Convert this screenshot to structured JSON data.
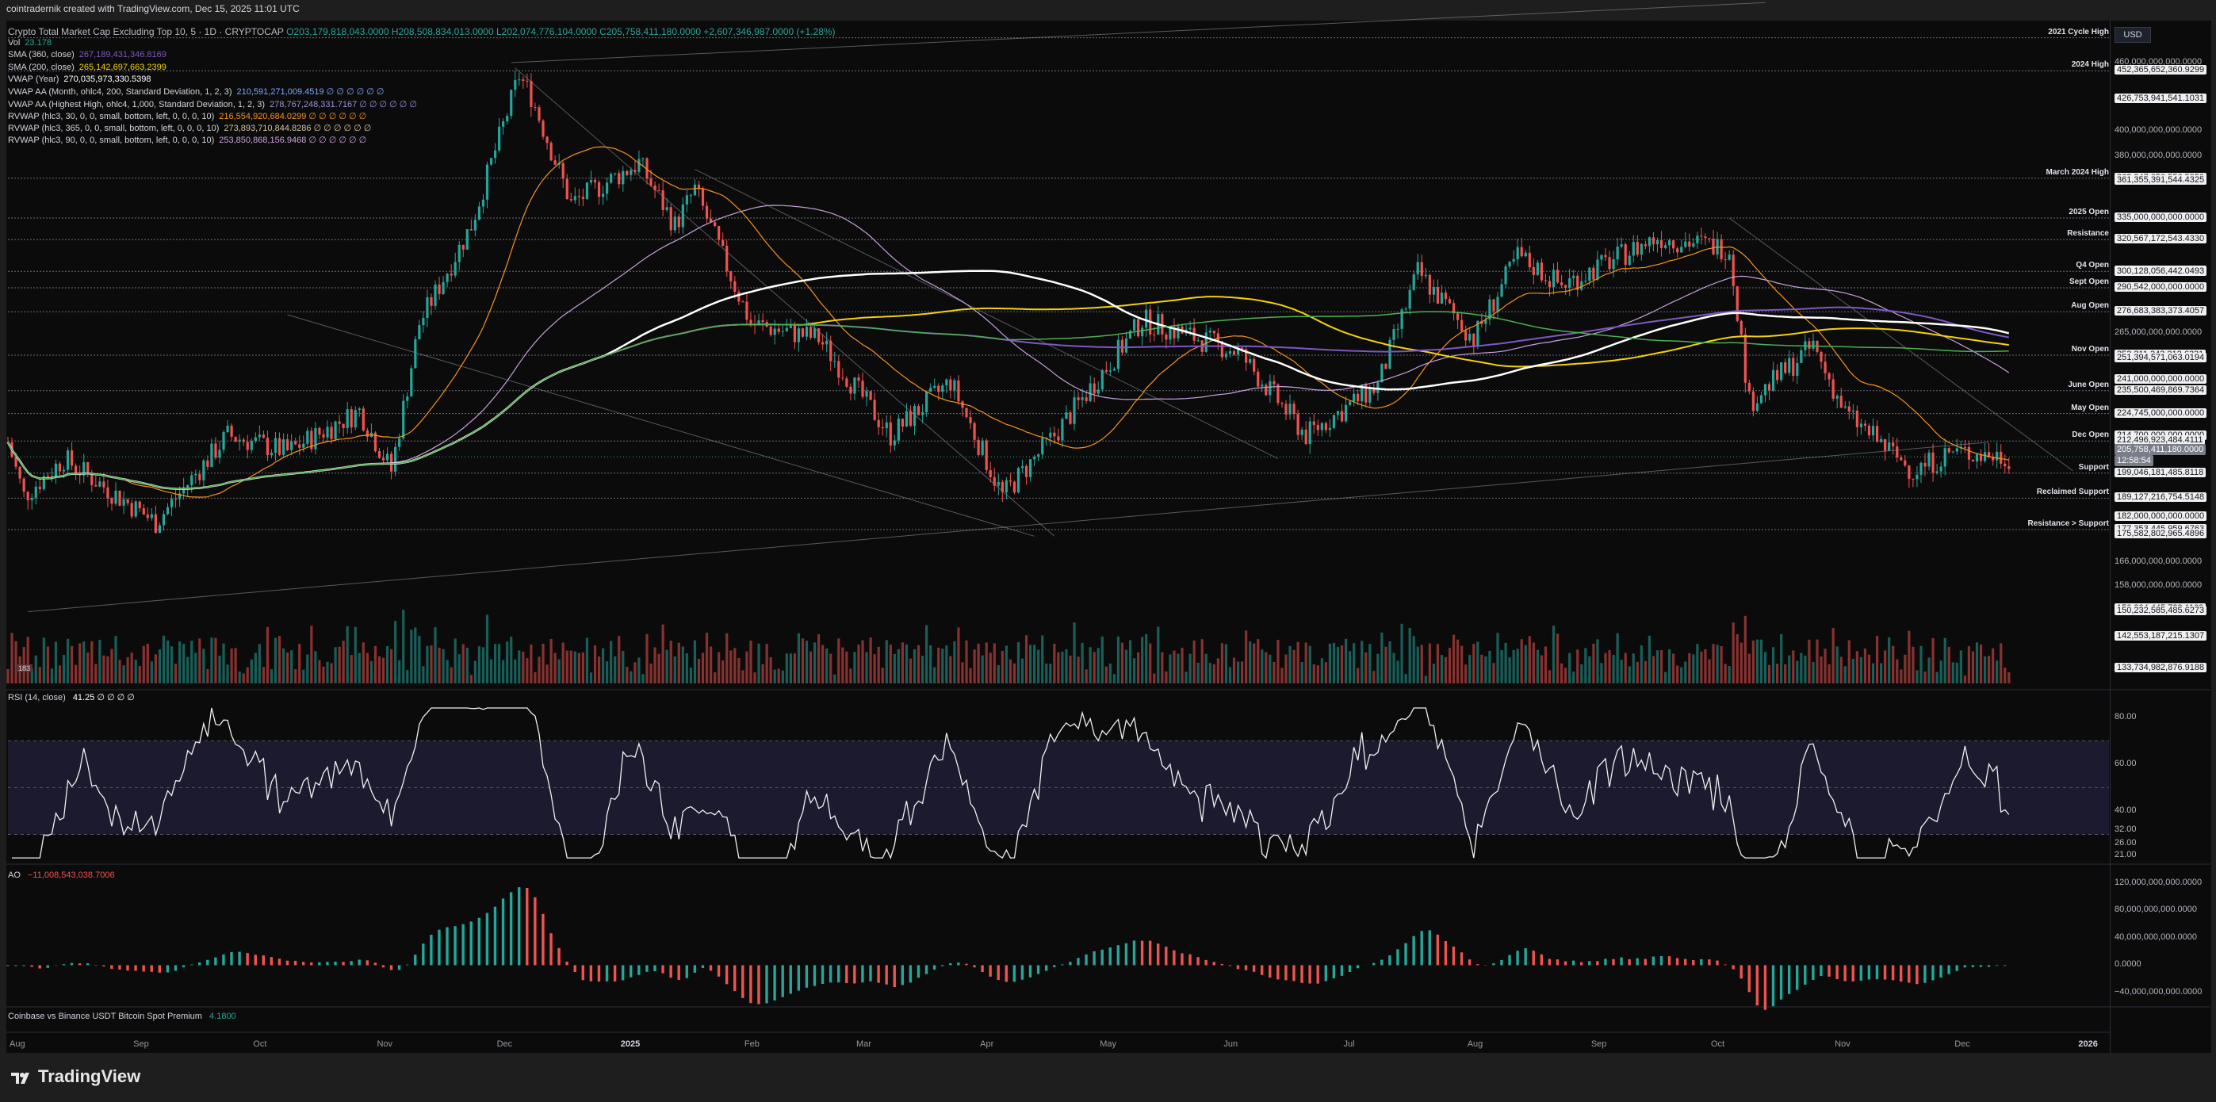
{
  "top_bar": "cointradernik created with TradingView.com, Dec 15, 2025 11:01 UTC",
  "header": {
    "symbol": "Crypto Total Market Cap Excluding Top 10, 5 · 1D · CRYPTOCAP",
    "open": "O203,179,818,043.0000",
    "high": "H208,508,834,013.0000",
    "low": "L202,074,776,104.0000",
    "close": "C205,758,411,180.0000",
    "change": "+2,607,346,987.0000 (+1.28%)"
  },
  "indicators": [
    {
      "label": "Vol",
      "value": "23.178",
      "color": "#26a69a"
    },
    {
      "label": "SMA (360, close)",
      "value": "267,189,431,346.8169",
      "color": "#7e57c2"
    },
    {
      "label": "SMA (200, close)",
      "value": "265,142,697,663.2399",
      "color": "#f5d10b"
    },
    {
      "label": "VWAP (Year)",
      "value": "270,035,973,330.5398",
      "color": "#ffffff"
    },
    {
      "label": "VWAP AA (Month, ohlc4, 200, Standard Deviation, 1, 2, 3)",
      "value": "210,591,271,009.4519  ∅ ∅ ∅ ∅ ∅ ∅",
      "color": "#7ea8f8"
    },
    {
      "label": "VWAP AA (Highest High, ohlc4, 1,000, Standard Deviation, 1, 2, 3)",
      "value": "278,767,248,331.7167  ∅ ∅ ∅ ∅ ∅ ∅",
      "color": "#9c8fd9"
    },
    {
      "label": "RVWAP (hlc3, 30, 0, 0, small, bottom, left, 0, 0, 0, 10)",
      "value": "216,554,920,684.0299  ∅ ∅ ∅ ∅ ∅ ∅",
      "color": "#f7931a"
    },
    {
      "label": "RVWAP (hlc3, 365, 0, 0, small, bottom, left, 0, 0, 0, 10)",
      "value": "273,893,710,844.8286  ∅ ∅ ∅ ∅ ∅ ∅",
      "color": "#d7c4a1"
    },
    {
      "label": "RVWAP (hlc3, 90, 0, 0, small, bottom, left, 0, 0, 0, 10)",
      "value": "253,850,868,156.9468  ∅ ∅ ∅ ∅ ∅ ∅",
      "color": "#c9a0dc"
    }
  ],
  "currency": "USD",
  "level_labels": [
    {
      "name": "2021 Cycle High",
      "value": 484
    },
    {
      "name": "2024 High",
      "value": 452.37
    },
    {
      "name": "March 2024 High",
      "value": 363.35
    },
    {
      "name": "2025 Open",
      "value": 335
    },
    {
      "name": "Resistance",
      "value": 320.57
    },
    {
      "name": "Q4 Open",
      "value": 300.44
    },
    {
      "name": "Sept Open",
      "value": 290.54
    },
    {
      "name": "Aug Open",
      "value": 276.68
    },
    {
      "name": "Nov Open",
      "value": 253.21
    },
    {
      "name": "June Open",
      "value": 235.5
    },
    {
      "name": "May Open",
      "value": 224.75
    },
    {
      "name": "Dec Open",
      "value": 212.5
    },
    {
      "name": "Support",
      "value": 199.05
    },
    {
      "name": "Reclaimed Support",
      "value": 189.13
    },
    {
      "name": "Resistance > Support",
      "value": 177.35
    }
  ],
  "price_ticks": [
    {
      "label": "460,000,000,000.0000",
      "value": 460,
      "boxed": false
    },
    {
      "label": "452,365,652,360.9299",
      "value": 452.37,
      "boxed": true
    },
    {
      "label": "426,753,941,541.1031",
      "value": 426.75,
      "boxed": true
    },
    {
      "label": "400,000,000,000.0000",
      "value": 400,
      "boxed": false
    },
    {
      "label": "380,000,000,000.0000",
      "value": 380,
      "boxed": false
    },
    {
      "label": "363,347,050,556.5959",
      "value": 363.35,
      "boxed": true
    },
    {
      "label": "361,355,391,544.4325",
      "value": 361.36,
      "boxed": true
    },
    {
      "label": "335,000,000,000.0000",
      "value": 335,
      "boxed": true
    },
    {
      "label": "320,567,172,543.4330",
      "value": 320.57,
      "boxed": true
    },
    {
      "label": "300,437,389,781.1864",
      "value": 300.44,
      "boxed": true
    },
    {
      "label": "300,128,056,442.0493",
      "value": 300.13,
      "boxed": true
    },
    {
      "label": "290,542,000,000.0000",
      "value": 290.54,
      "boxed": true
    },
    {
      "label": "276,683,383,373.4057",
      "value": 276.68,
      "boxed": true
    },
    {
      "label": "265,000,000,000.0000",
      "value": 265,
      "boxed": false
    },
    {
      "label": "253,211,343,212.6331",
      "value": 253.21,
      "boxed": true
    },
    {
      "label": "251,394,571,063.0194",
      "value": 251.39,
      "boxed": true
    },
    {
      "label": "241,000,000,000.0000",
      "value": 241,
      "boxed": true
    },
    {
      "label": "235,500,469,869.7364",
      "value": 235.5,
      "boxed": true
    },
    {
      "label": "224,745,000,000.0000",
      "value": 224.75,
      "boxed": true
    },
    {
      "label": "214,700,000,000.0000",
      "value": 214.7,
      "boxed": true
    },
    {
      "label": "212,496,923,484.4111",
      "value": 212.5,
      "boxed": true
    },
    {
      "label": "199,046,181,485.8118",
      "value": 199.05,
      "boxed": true
    },
    {
      "label": "189,127,216,754.5148",
      "value": 189.13,
      "boxed": true
    },
    {
      "label": "182,000,000,000.0000",
      "value": 182,
      "boxed": true
    },
    {
      "label": "177,353,445,959.6763",
      "value": 177.35,
      "boxed": true
    },
    {
      "label": "175,582,802,965.4896",
      "value": 175.58,
      "boxed": true
    },
    {
      "label": "166,000,000,000.0000",
      "value": 166,
      "boxed": false
    },
    {
      "label": "158,000,000,000.0000",
      "value": 158,
      "boxed": false
    },
    {
      "label": "150,804,445,728.1169",
      "value": 150.8,
      "boxed": true
    },
    {
      "label": "150,232,585,485.6273",
      "value": 150.23,
      "boxed": true
    },
    {
      "label": "142,553,187,215.1307",
      "value": 142.55,
      "boxed": true
    },
    {
      "label": "133,734,982,876.9188",
      "value": 133.73,
      "boxed": true
    }
  ],
  "current_price": {
    "label": "205,758,411,180.0000",
    "countdown": "12:58:54",
    "value": 205.76
  },
  "rsi": {
    "label": "RSI (14, close)",
    "value": "41.25  ∅ ∅ ∅ ∅",
    "ticks": [
      "80.00",
      "60.00",
      "40.00",
      "32.00",
      "26.00",
      "21.00"
    ],
    "tick_values": [
      80,
      60,
      40,
      32,
      26,
      21
    ]
  },
  "ao": {
    "label": "AO",
    "value": "−11,008,543,038.7006",
    "ticks": [
      "120,000,000,000.0000",
      "80,000,000,000.0000",
      "40,000,000,000.0000",
      "0.0000",
      "−40,000,000,000.0000"
    ],
    "tick_values": [
      120,
      80,
      40,
      0,
      -40
    ]
  },
  "premium": {
    "label": "Coinbase vs Binance USDT Bitcoin Spot Premium",
    "value": "4.1800"
  },
  "months": [
    "Aug",
    "Sep",
    "Oct",
    "Nov",
    "Dec",
    "2025",
    "Feb",
    "Mar",
    "Apr",
    "May",
    "Jun",
    "Jul",
    "Aug",
    "Sep",
    "Oct",
    "Nov",
    "Dec",
    "2026"
  ],
  "vol_badge": "183",
  "brand": "TradingView",
  "chart_data": {
    "type": "line",
    "title": "Crypto Total Market Cap Excluding Top 10, 5 · 1D · CRYPTOCAP",
    "xlabel": "",
    "ylabel": "",
    "ylim": [
      130,
      490
    ],
    "price_path_billion_usd": [
      {
        "date": "2024-08-01",
        "value": 212
      },
      {
        "date": "2024-08-05",
        "value": 190
      },
      {
        "date": "2024-08-15",
        "value": 205
      },
      {
        "date": "2024-09-07",
        "value": 180
      },
      {
        "date": "2024-09-25",
        "value": 215
      },
      {
        "date": "2024-10-10",
        "value": 208
      },
      {
        "date": "2024-10-28",
        "value": 226
      },
      {
        "date": "2024-11-05",
        "value": 200
      },
      {
        "date": "2024-11-12",
        "value": 270
      },
      {
        "date": "2024-11-25",
        "value": 330
      },
      {
        "date": "2024-12-07",
        "value": 448
      },
      {
        "date": "2024-12-10",
        "value": 430
      },
      {
        "date": "2024-12-20",
        "value": 345
      },
      {
        "date": "2025-01-06",
        "value": 375
      },
      {
        "date": "2025-01-15",
        "value": 330
      },
      {
        "date": "2025-01-20",
        "value": 355
      },
      {
        "date": "2025-02-03",
        "value": 270
      },
      {
        "date": "2025-02-20",
        "value": 262
      },
      {
        "date": "2025-03-10",
        "value": 215
      },
      {
        "date": "2025-03-25",
        "value": 240
      },
      {
        "date": "2025-04-07",
        "value": 190
      },
      {
        "date": "2025-04-20",
        "value": 215
      },
      {
        "date": "2025-05-12",
        "value": 272
      },
      {
        "date": "2025-06-05",
        "value": 255
      },
      {
        "date": "2025-06-22",
        "value": 215
      },
      {
        "date": "2025-07-10",
        "value": 238
      },
      {
        "date": "2025-07-20",
        "value": 300
      },
      {
        "date": "2025-08-03",
        "value": 262
      },
      {
        "date": "2025-08-14",
        "value": 310
      },
      {
        "date": "2025-08-25",
        "value": 292
      },
      {
        "date": "2025-09-18",
        "value": 322
      },
      {
        "date": "2025-10-06",
        "value": 315
      },
      {
        "date": "2025-10-11",
        "value": 230
      },
      {
        "date": "2025-10-27",
        "value": 258
      },
      {
        "date": "2025-11-04",
        "value": 225
      },
      {
        "date": "2025-11-21",
        "value": 200
      },
      {
        "date": "2025-12-01",
        "value": 208
      },
      {
        "date": "2025-12-15",
        "value": 205.76
      }
    ]
  }
}
